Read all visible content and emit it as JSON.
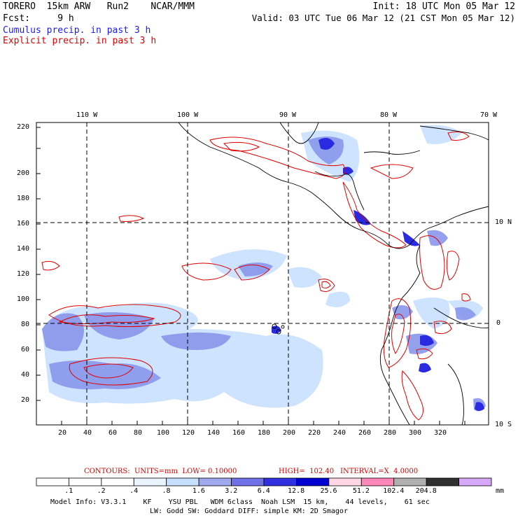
{
  "header": {
    "left_line1": "TORERO  15km ARW   Run2    NCAR/MMM",
    "left_line2": "Fcst:     9 h",
    "right_line1": "Init: 18 UTC Mon 05 Mar 12",
    "right_line2": "Valid: 03 UTC Tue 06 Mar 12 (21 CST Mon 05 Mar 12)",
    "legend_cumulus": "Cumulus precip. in past 3 h",
    "legend_explicit": "Explicit precip. in past 3 h",
    "cumulus_color": "#1a1aff",
    "explicit_color": "#e00000"
  },
  "map": {
    "lon_labels": [
      "110 W",
      "100 W",
      "90 W",
      "80 W",
      "70 W"
    ],
    "lat_labels": [
      "10 N",
      "0",
      "10 S"
    ],
    "x_ticks": [
      "20",
      "40",
      "60",
      "80",
      "100",
      "120",
      "140",
      "160",
      "180",
      "200",
      "220",
      "240",
      "260",
      "280",
      "300",
      "320"
    ],
    "y_ticks": [
      "20",
      "40",
      "60",
      "80",
      "100",
      "120",
      "140",
      "160",
      "180",
      "200",
      "220"
    ]
  },
  "contours": {
    "units_label": "CONTOURS:  UNITS=mm  LOW= 0.10000",
    "high_label": "HIGH=  102.40",
    "interval_label": "INTERVAL=X  4.0000"
  },
  "colorbar": {
    "labels": [
      ".1",
      ".2",
      ".4",
      ".8",
      "1.6",
      "3.2",
      "6.4",
      "12.8",
      "25.6",
      "51.2",
      "102.4",
      "204.8"
    ],
    "unit": "mm",
    "colors": [
      "#ffffff",
      "#ffffff",
      "#ffffff",
      "#eaf4ff",
      "#c8e0ff",
      "#a0a8f0",
      "#7070e8",
      "#3030e0",
      "#0000d0",
      "#ffd8e4",
      "#ff88b8",
      "#b0b0b0",
      "#303030",
      "#d8a8f8"
    ]
  },
  "model_info": {
    "line1": "Model Info: V3.3.1    KF    YSU PBL   WDM 6class  Noah LSM  15 km,    44 levels,    61 sec",
    "line2": "LW: Godd SW: Goddard DIFF: simple KM: 2D Smagor"
  }
}
